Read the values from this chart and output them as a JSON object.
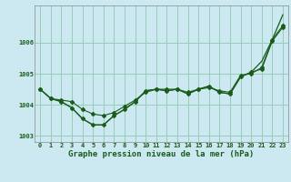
{
  "title": "Graphe pression niveau de la mer (hPa)",
  "bg_color": "#cce8f0",
  "grid_color": "#99ccbb",
  "line_color": "#1a5c1a",
  "xlim_min": -0.5,
  "xlim_max": 23.5,
  "ylim_min": 1002.8,
  "ylim_max": 1007.2,
  "yticks": [
    1003,
    1004,
    1005,
    1006
  ],
  "xticks": [
    0,
    1,
    2,
    3,
    4,
    5,
    6,
    7,
    8,
    9,
    10,
    11,
    12,
    13,
    14,
    15,
    16,
    17,
    18,
    19,
    20,
    21,
    22,
    23
  ],
  "series_smooth": [
    1004.5,
    1004.2,
    1004.15,
    1004.1,
    1003.85,
    1003.7,
    1003.65,
    1003.75,
    1003.95,
    1004.15,
    1004.4,
    1004.5,
    1004.5,
    1004.5,
    1004.4,
    1004.5,
    1004.55,
    1004.45,
    1004.4,
    1004.95,
    1005.0,
    1005.2,
    1006.1,
    1006.55
  ],
  "series_detail": [
    1004.5,
    1004.2,
    1004.1,
    1003.9,
    1003.55,
    1003.35,
    1003.35,
    1003.65,
    1003.85,
    1004.1,
    1004.45,
    1004.5,
    1004.45,
    1004.5,
    1004.35,
    1004.5,
    1004.6,
    1004.4,
    1004.35,
    1004.9,
    1005.05,
    1005.15,
    1006.05,
    1006.5
  ],
  "series_trend": [
    1004.5,
    1004.2,
    1004.1,
    1003.9,
    1003.55,
    1003.35,
    1003.35,
    1003.65,
    1003.85,
    1004.1,
    1004.45,
    1004.5,
    1004.45,
    1004.5,
    1004.35,
    1004.5,
    1004.6,
    1004.4,
    1004.35,
    1004.9,
    1005.05,
    1005.4,
    1006.1,
    1006.9
  ]
}
